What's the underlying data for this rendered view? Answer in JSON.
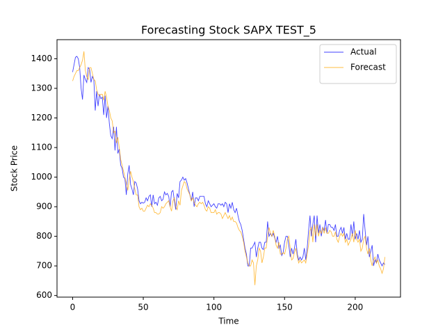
{
  "chart_data": {
    "type": "line",
    "title": "Forecasting Stock SAPX TEST_5",
    "x_label": "Time",
    "y_label": "Stock Price",
    "x": [
      0,
      1,
      2,
      3,
      4,
      5,
      6,
      7,
      8,
      9,
      10,
      11,
      12,
      13,
      14,
      15,
      16,
      17,
      18,
      19,
      20,
      21,
      22,
      23,
      24,
      25,
      26,
      27,
      28,
      29,
      30,
      31,
      32,
      33,
      34,
      35,
      36,
      37,
      38,
      39,
      40,
      41,
      42,
      43,
      44,
      45,
      46,
      47,
      48,
      49,
      50,
      51,
      52,
      53,
      54,
      55,
      56,
      57,
      58,
      59,
      60,
      61,
      62,
      63,
      64,
      65,
      66,
      67,
      68,
      69,
      70,
      71,
      72,
      73,
      74,
      75,
      76,
      77,
      78,
      79,
      80,
      81,
      82,
      83,
      84,
      85,
      86,
      87,
      88,
      89,
      90,
      91,
      92,
      93,
      94,
      95,
      96,
      97,
      98,
      99,
      100,
      101,
      102,
      103,
      104,
      105,
      106,
      107,
      108,
      109,
      110,
      111,
      112,
      113,
      114,
      115,
      116,
      117,
      118,
      119,
      120,
      121,
      122,
      123,
      124,
      125,
      126,
      127,
      128,
      129,
      130,
      131,
      132,
      133,
      134,
      135,
      136,
      137,
      138,
      139,
      140,
      141,
      142,
      143,
      144,
      145,
      146,
      147,
      148,
      149,
      150,
      151,
      152,
      153,
      154,
      155,
      156,
      157,
      158,
      159,
      160,
      161,
      162,
      163,
      164,
      165,
      166,
      167,
      168,
      169,
      170,
      171,
      172,
      173,
      174,
      175,
      176,
      177,
      178,
      179,
      180,
      181,
      182,
      183,
      184,
      185,
      186,
      187,
      188,
      189,
      190,
      191,
      192,
      193,
      194,
      195,
      196,
      197,
      198,
      199,
      200,
      201,
      202,
      203,
      204,
      205,
      206,
      207,
      208,
      209,
      210,
      211,
      212,
      213,
      214,
      215,
      216,
      217,
      218,
      219,
      220,
      221
    ],
    "series": [
      {
        "name": "Actual",
        "color": "#0000ff",
        "values": [
          1355,
          1380,
          1405,
          1408,
          1400,
          1370,
          1300,
          1262,
          1345,
          1330,
          1320,
          1370,
          1365,
          1320,
          1340,
          1330,
          1225,
          1290,
          1240,
          1280,
          1265,
          1270,
          1210,
          1275,
          1200,
          1240,
          1180,
          1140,
          1130,
          1170,
          1090,
          1170,
          1080,
          1095,
          1040,
          1030,
          1000,
          995,
          940,
          1010,
          1040,
          975,
          960,
          940,
          985,
          980,
          960,
          920,
          910,
          915,
          912,
          915,
          930,
          920,
          935,
          940,
          900,
          940,
          910,
          915,
          905,
          930,
          935,
          920,
          925,
          950,
          940,
          945,
          935,
          900,
          950,
          955,
          920,
          890,
          945,
          930,
          985,
          990,
          1000,
          990,
          995,
          980,
          960,
          940,
          920,
          950,
          900,
          930,
          930,
          920,
          935,
          935,
          935,
          935,
          910,
          900,
          920,
          910,
          900,
          905,
          910,
          900,
          895,
          910,
          910,
          905,
          910,
          900,
          915,
          910,
          880,
          910,
          895,
          915,
          890,
          880,
          895,
          870,
          850,
          840,
          820,
          790,
          760,
          740,
          700,
          700,
          760,
          760,
          770,
          780,
          730,
          760,
          780,
          780,
          760,
          755,
          780,
          780,
          850,
          800,
          810,
          800,
          810,
          795,
          780,
          800,
          760,
          770,
          735,
          745,
          780,
          800,
          800,
          770,
          730,
          760,
          740,
          760,
          790,
          740,
          720,
          730,
          720,
          730,
          760,
          720,
          760,
          820,
          870,
          800,
          840,
          870,
          780,
          870,
          810,
          840,
          800,
          830,
          820,
          855,
          810,
          840,
          840,
          830,
          830,
          820,
          840,
          800,
          800,
          820,
          830,
          810,
          830,
          790,
          810,
          790,
          790,
          840,
          800,
          850,
          790,
          810,
          790,
          820,
          780,
          790,
          875,
          820,
          770,
          800,
          730,
          750,
          770,
          700,
          720,
          710,
          740,
          720,
          710,
          700,
          710,
          705
        ]
      },
      {
        "name": "Forecast",
        "color": "#ffa500",
        "values": [
          1325,
          1340,
          1350,
          1360,
          1360,
          1370,
          1380,
          1395,
          1425,
          1360,
          1340,
          1330,
          1370,
          1370,
          1350,
          1330,
          1325,
          1295,
          1280,
          1275,
          1280,
          1280,
          1260,
          1290,
          1270,
          1240,
          1225,
          1200,
          1190,
          1150,
          1155,
          1115,
          1135,
          1100,
          1060,
          1040,
          1020,
          1000,
          980,
          955,
          990,
          1020,
          1000,
          985,
          960,
          940,
          940,
          900,
          890,
          895,
          885,
          885,
          895,
          905,
          900,
          910,
          905,
          895,
          880,
          880,
          875,
          875,
          880,
          900,
          895,
          900,
          910,
          915,
          920,
          900,
          885,
          920,
          930,
          900,
          890,
          920,
          905,
          955,
          970,
          985,
          980,
          960,
          950,
          940,
          920,
          930,
          915,
          905,
          900,
          910,
          915,
          910,
          915,
          905,
          890,
          885,
          900,
          895,
          880,
          880,
          880,
          890,
          875,
          880,
          880,
          875,
          860,
          870,
          880,
          870,
          860,
          870,
          855,
          865,
          850,
          850,
          845,
          830,
          820,
          815,
          800,
          780,
          750,
          730,
          710,
          700,
          700,
          720,
          710,
          635,
          700,
          720,
          760,
          750,
          710,
          730,
          760,
          760,
          800,
          830,
          810,
          800,
          820,
          800,
          770,
          760,
          780,
          740,
          740,
          745,
          740,
          760,
          790,
          800,
          760,
          720,
          725,
          745,
          760,
          730,
          710,
          720,
          710,
          715,
          720,
          710,
          740,
          770,
          820,
          830,
          780,
          840,
          800,
          840,
          800,
          820,
          810,
          830,
          810,
          830,
          810,
          810,
          820,
          815,
          800,
          800,
          815,
          790,
          780,
          800,
          810,
          800,
          810,
          780,
          790,
          770,
          780,
          790,
          810,
          780,
          820,
          790,
          780,
          790,
          750,
          760,
          790,
          800,
          760,
          740,
          760,
          720,
          700,
          720,
          730,
          710,
          720,
          700,
          690,
          675,
          690,
          730
        ]
      }
    ],
    "xlim": [
      -11.05,
      232.05
    ],
    "ylim": [
      594.5,
      1464.5
    ],
    "xticks": [
      0,
      50,
      100,
      150,
      200
    ],
    "yticks": [
      600,
      700,
      800,
      900,
      1000,
      1100,
      1200,
      1300,
      1400
    ],
    "legend": "upper right"
  }
}
